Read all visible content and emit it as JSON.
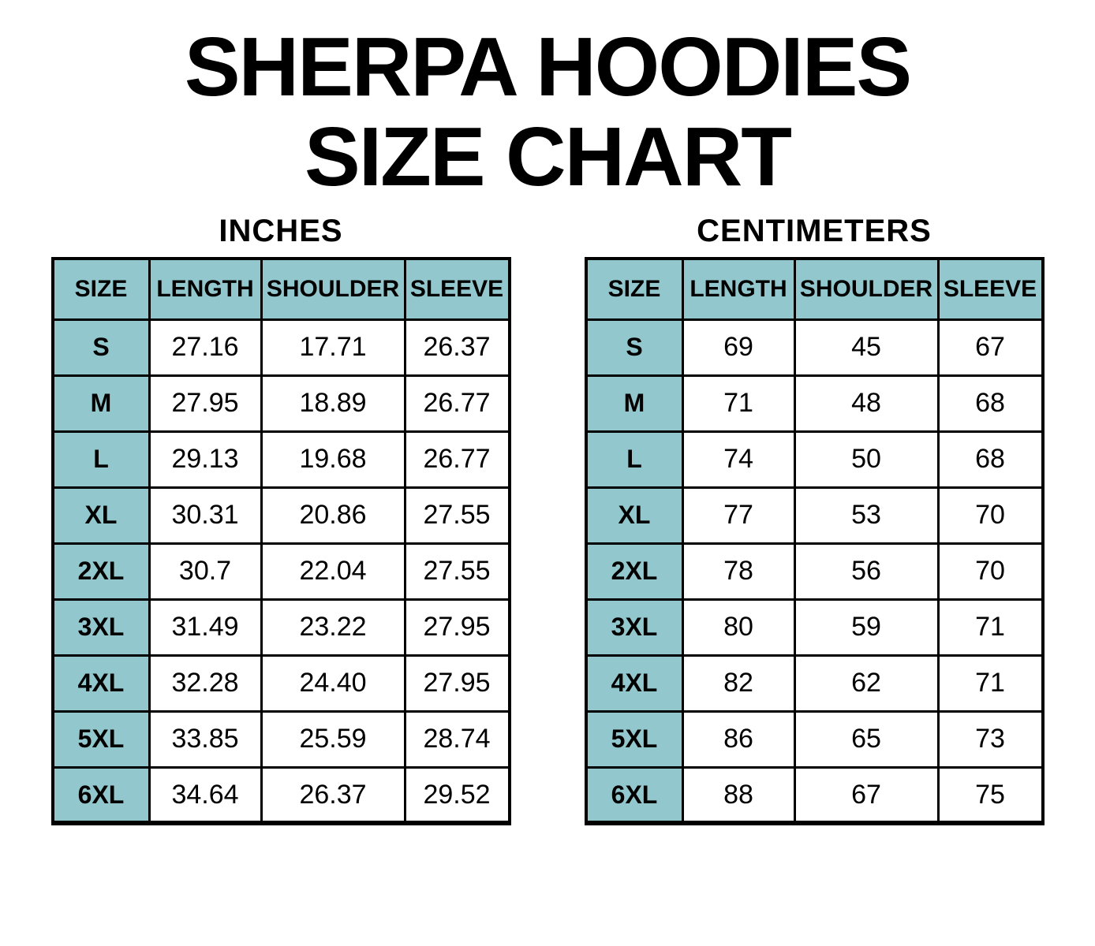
{
  "title": {
    "line1": "SHERPA HOODIES",
    "line2": "SIZE CHART"
  },
  "colors": {
    "accent_bg": "#92C7CD",
    "border": "#000000",
    "text": "#000000",
    "page_bg": "#FFFFFF"
  },
  "tables": [
    {
      "heading": "INCHES",
      "columns": [
        "SIZE",
        "LENGTH",
        "SHOULDER",
        "SLEEVE"
      ],
      "rows": [
        {
          "size": "S",
          "values": [
            "27.16",
            "17.71",
            "26.37"
          ]
        },
        {
          "size": "M",
          "values": [
            "27.95",
            "18.89",
            "26.77"
          ]
        },
        {
          "size": "L",
          "values": [
            "29.13",
            "19.68",
            "26.77"
          ]
        },
        {
          "size": "XL",
          "values": [
            "30.31",
            "20.86",
            "27.55"
          ]
        },
        {
          "size": "2XL",
          "values": [
            "30.7",
            "22.04",
            "27.55"
          ]
        },
        {
          "size": "3XL",
          "values": [
            "31.49",
            "23.22",
            "27.95"
          ]
        },
        {
          "size": "4XL",
          "values": [
            "32.28",
            "24.40",
            "27.95"
          ]
        },
        {
          "size": "5XL",
          "values": [
            "33.85",
            "25.59",
            "28.74"
          ]
        },
        {
          "size": "6XL",
          "values": [
            "34.64",
            "26.37",
            "29.52"
          ]
        }
      ]
    },
    {
      "heading": "CENTIMETERS",
      "columns": [
        "SIZE",
        "LENGTH",
        "SHOULDER",
        "SLEEVE"
      ],
      "rows": [
        {
          "size": "S",
          "values": [
            "69",
            "45",
            "67"
          ]
        },
        {
          "size": "M",
          "values": [
            "71",
            "48",
            "68"
          ]
        },
        {
          "size": "L",
          "values": [
            "74",
            "50",
            "68"
          ]
        },
        {
          "size": "XL",
          "values": [
            "77",
            "53",
            "70"
          ]
        },
        {
          "size": "2XL",
          "values": [
            "78",
            "56",
            "70"
          ]
        },
        {
          "size": "3XL",
          "values": [
            "80",
            "59",
            "71"
          ]
        },
        {
          "size": "4XL",
          "values": [
            "82",
            "62",
            "71"
          ]
        },
        {
          "size": "5XL",
          "values": [
            "86",
            "65",
            "73"
          ]
        },
        {
          "size": "6XL",
          "values": [
            "88",
            "67",
            "75"
          ]
        }
      ]
    }
  ],
  "chart_data": [
    {
      "type": "table",
      "title": "INCHES",
      "columns": [
        "SIZE",
        "LENGTH",
        "SHOULDER",
        "SLEEVE"
      ],
      "rows": [
        [
          "S",
          27.16,
          17.71,
          26.37
        ],
        [
          "M",
          27.95,
          18.89,
          26.77
        ],
        [
          "L",
          29.13,
          19.68,
          26.77
        ],
        [
          "XL",
          30.31,
          20.86,
          27.55
        ],
        [
          "2XL",
          30.7,
          22.04,
          27.55
        ],
        [
          "3XL",
          31.49,
          23.22,
          27.95
        ],
        [
          "4XL",
          32.28,
          24.4,
          27.95
        ],
        [
          "5XL",
          33.85,
          25.59,
          28.74
        ],
        [
          "6XL",
          34.64,
          26.37,
          29.52
        ]
      ]
    },
    {
      "type": "table",
      "title": "CENTIMETERS",
      "columns": [
        "SIZE",
        "LENGTH",
        "SHOULDER",
        "SLEEVE"
      ],
      "rows": [
        [
          "S",
          69,
          45,
          67
        ],
        [
          "M",
          71,
          48,
          68
        ],
        [
          "L",
          74,
          50,
          68
        ],
        [
          "XL",
          77,
          53,
          70
        ],
        [
          "2XL",
          78,
          56,
          70
        ],
        [
          "3XL",
          80,
          59,
          71
        ],
        [
          "4XL",
          82,
          62,
          71
        ],
        [
          "5XL",
          86,
          65,
          73
        ],
        [
          "6XL",
          88,
          67,
          75
        ]
      ]
    }
  ]
}
